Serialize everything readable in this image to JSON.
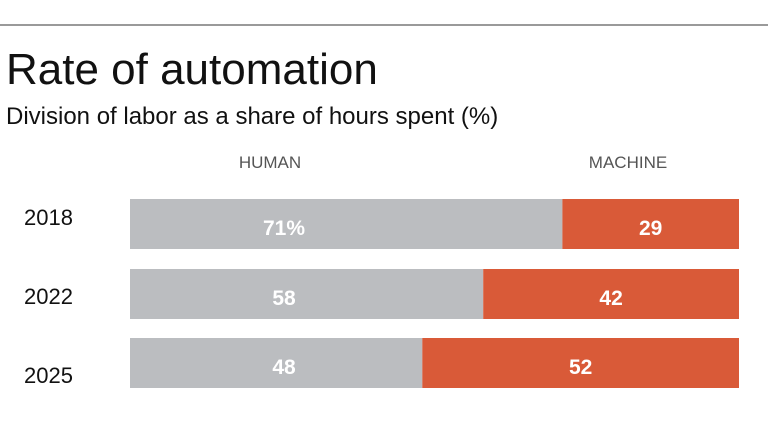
{
  "chart_data": {
    "type": "bar",
    "orientation": "horizontal",
    "stacked": true,
    "title": "Rate of automation",
    "subtitle": "Division of labor as a share of hours spent (%)",
    "categories": [
      "2018",
      "2022",
      "2025"
    ],
    "series": [
      {
        "name": "HUMAN",
        "values": [
          71,
          58,
          48
        ],
        "labels": [
          "71%",
          "58",
          "48"
        ],
        "color": "#bbbdc0"
      },
      {
        "name": "MACHINE",
        "values": [
          29,
          42,
          52
        ],
        "labels": [
          "29",
          "42",
          "52"
        ],
        "color": "#d95a38"
      }
    ],
    "xlim": [
      0,
      100
    ],
    "grid": false,
    "legend": "top"
  }
}
